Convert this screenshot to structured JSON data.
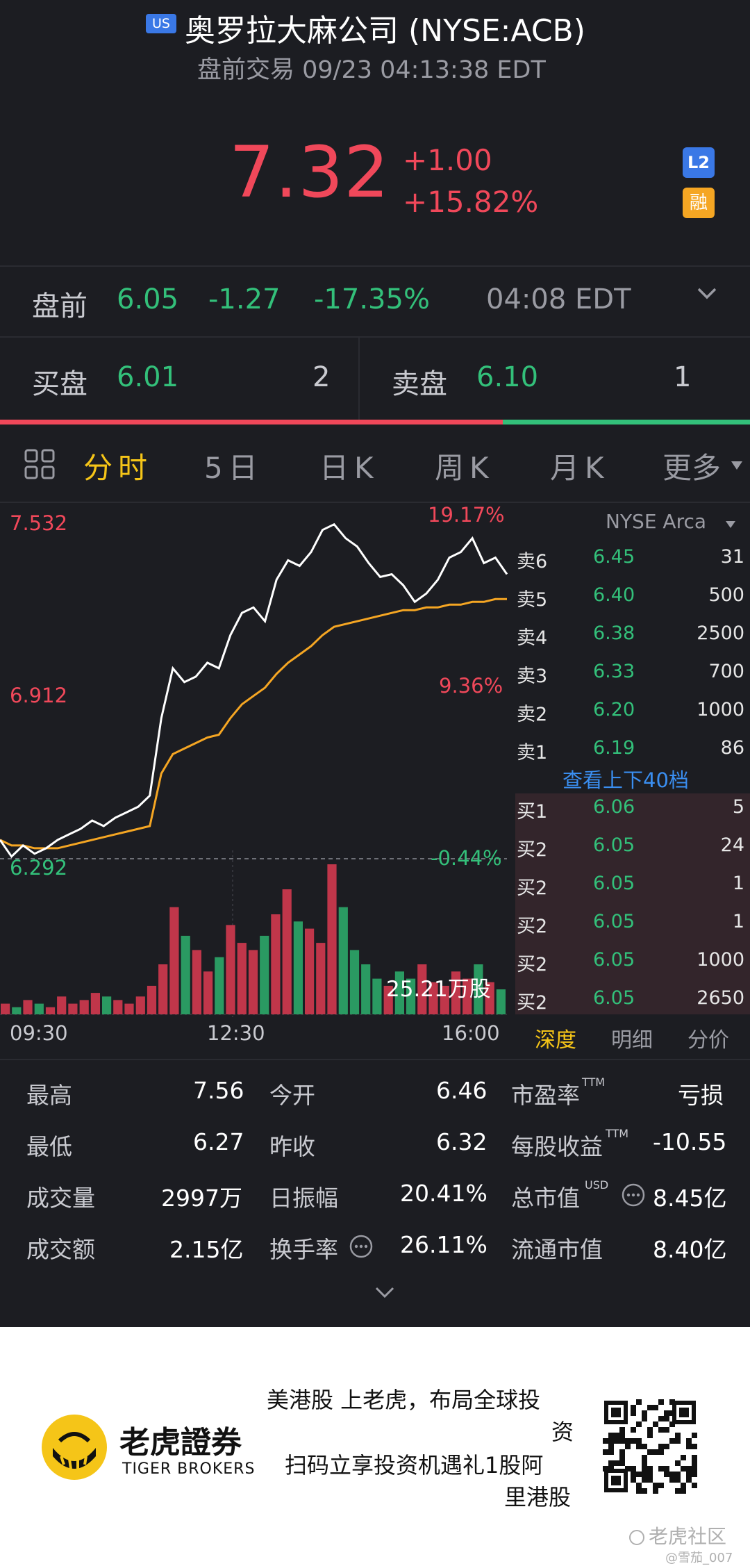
{
  "header": {
    "market_badge": "US",
    "title": "奥罗拉大麻公司 (NYSE:ACB)",
    "subtitle": "盘前交易 09/23 04:13:38 EDT"
  },
  "quote": {
    "price": "7.32",
    "change": "+1.00",
    "change_pct": "+15.82%",
    "badge_l2": "L2",
    "badge_margin": "融"
  },
  "premarket": {
    "label": "盘前",
    "price": "6.05",
    "change": "-1.27",
    "change_pct": "-17.35%",
    "time": "04:08 EDT"
  },
  "bid_ask": {
    "bid_label": "买盘",
    "bid_price": "6.01",
    "bid_qty": "2",
    "ask_label": "卖盘",
    "ask_price": "6.10",
    "ask_qty": "1",
    "buy_ratio": 0.67
  },
  "tabs": [
    "分时",
    "5日",
    "日K",
    "周K",
    "月K",
    "更多"
  ],
  "active_tab": "分时",
  "chart": {
    "y_high": "7.532",
    "y_mid": "6.912",
    "y_low": "6.292",
    "pct_high": "19.17%",
    "pct_mid": "9.36%",
    "pct_low": "-0.44%",
    "volume_label": "25.21万股",
    "x_labels": [
      "09:30",
      "12:30",
      "16:00"
    ]
  },
  "chart_data": {
    "type": "line",
    "title": "",
    "x_labels": [
      "09:30",
      "12:30",
      "16:00"
    ],
    "ylim": [
      6.292,
      7.532
    ],
    "reference_close": 6.32,
    "series": [
      {
        "values": [
          6.36,
          6.3,
          6.34,
          6.31,
          6.33,
          6.36,
          6.38,
          6.4,
          6.43,
          6.41,
          6.44,
          6.46,
          6.48,
          6.52,
          6.8,
          6.98,
          6.93,
          6.95,
          7.0,
          6.98,
          7.1,
          7.18,
          7.2,
          7.15,
          7.3,
          7.37,
          7.35,
          7.4,
          7.48,
          7.5,
          7.45,
          7.42,
          7.36,
          7.31,
          7.32,
          7.28,
          7.22,
          7.25,
          7.3,
          7.38,
          7.4,
          7.45,
          7.36,
          7.38,
          7.32
        ]
      },
      {
        "values": [
          6.36,
          6.34,
          6.34,
          6.33,
          6.33,
          6.33,
          6.34,
          6.35,
          6.36,
          6.37,
          6.38,
          6.39,
          6.4,
          6.41,
          6.6,
          6.67,
          6.69,
          6.71,
          6.73,
          6.74,
          6.8,
          6.85,
          6.88,
          6.91,
          6.96,
          7.0,
          7.03,
          7.06,
          7.1,
          7.13,
          7.14,
          7.15,
          7.16,
          7.17,
          7.18,
          7.19,
          7.19,
          7.2,
          7.2,
          7.21,
          7.21,
          7.22,
          7.22,
          7.23,
          7.23
        ]
      }
    ],
    "volume": [
      3,
      2,
      4,
      3,
      2,
      5,
      3,
      4,
      6,
      5,
      4,
      3,
      5,
      8,
      14,
      30,
      22,
      18,
      12,
      16,
      25,
      20,
      18,
      22,
      28,
      35,
      26,
      24,
      20,
      42,
      30,
      18,
      14,
      10,
      8,
      12,
      10,
      14,
      9,
      8,
      12,
      10,
      14,
      9,
      7
    ]
  },
  "order_book": {
    "exchange": "NYSE Arca",
    "asks": [
      {
        "label": "卖6",
        "price": "6.45",
        "qty": "31"
      },
      {
        "label": "卖5",
        "price": "6.40",
        "qty": "500"
      },
      {
        "label": "卖4",
        "price": "6.38",
        "qty": "2500"
      },
      {
        "label": "卖3",
        "price": "6.33",
        "qty": "700"
      },
      {
        "label": "卖2",
        "price": "6.20",
        "qty": "1000"
      },
      {
        "label": "卖1",
        "price": "6.19",
        "qty": "86"
      }
    ],
    "view_more": "查看上下40档",
    "bids": [
      {
        "label": "买1",
        "price": "6.06",
        "qty": "5"
      },
      {
        "label": "买2",
        "price": "6.05",
        "qty": "24"
      },
      {
        "label": "买2",
        "price": "6.05",
        "qty": "1"
      },
      {
        "label": "买2",
        "price": "6.05",
        "qty": "1"
      },
      {
        "label": "买2",
        "price": "6.05",
        "qty": "1000"
      },
      {
        "label": "买2",
        "price": "6.05",
        "qty": "2650"
      }
    ],
    "tabs": [
      "深度",
      "明细",
      "分价"
    ]
  },
  "stats": {
    "high_label": "最高",
    "high": "7.56",
    "open_label": "今开",
    "open": "6.46",
    "pe_label": "市盈率",
    "pe_sup": "TTM",
    "pe": "亏损",
    "low_label": "最低",
    "low": "6.27",
    "prev_label": "昨收",
    "prev": "6.32",
    "eps_label": "每股收益",
    "eps_sup": "TTM",
    "eps": "-10.55",
    "vol_label": "成交量",
    "vol": "2997万",
    "amp_label": "日振幅",
    "amp": "20.41%",
    "mcap_label": "总市值",
    "mcap_sup": "USD",
    "mcap": "8.45亿",
    "turnover_label": "成交额",
    "turnover": "2.15亿",
    "rate_label": "换手率",
    "rate": "26.11%",
    "float_label": "流通市值",
    "float": "8.40亿"
  },
  "footer": {
    "brand_cn": "老虎證券",
    "brand_en": "TIGER BROKERS",
    "slogan_1": "美港股 上老虎，布局全球投",
    "slogan_2": "资",
    "slogan_3": "扫码立享投资机遇礼1股阿",
    "slogan_4": "里港股",
    "watermark": "老虎社区",
    "watermark_user": "@雪茄_007"
  },
  "colors": {
    "up": "#f0485a",
    "down": "#33c07a",
    "accent": "#f5c518",
    "background": "#1c1d22"
  }
}
